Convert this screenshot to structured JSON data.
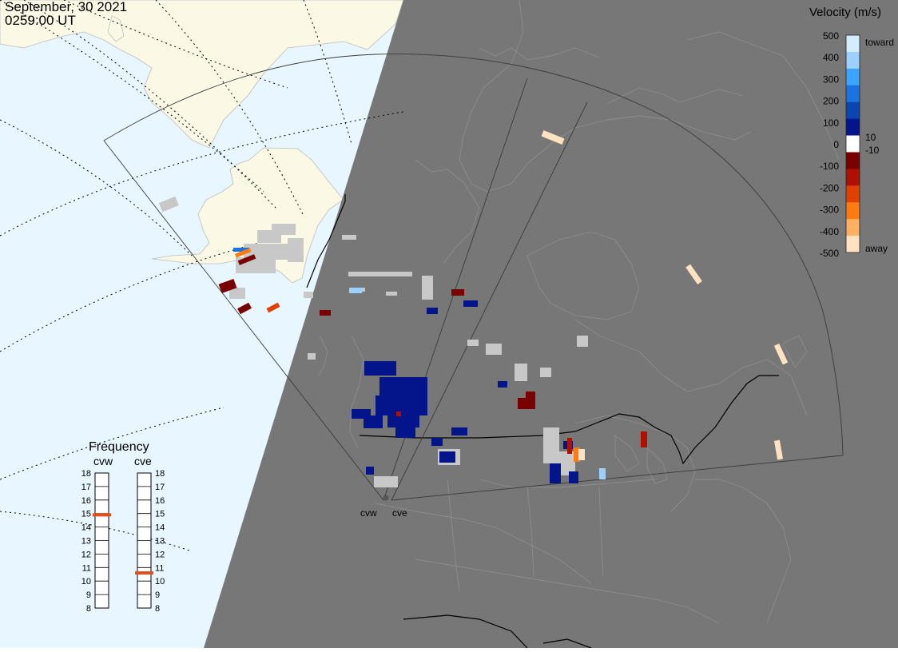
{
  "header": {
    "date": "September, 30 2021",
    "time": "0259:00 UT"
  },
  "colors": {
    "ocean": "#e7f6ff",
    "land_day": "#fbf9e6",
    "night": "#777777",
    "boundary": "#000000",
    "ground_scatter": "#c8c8c8"
  },
  "legend": {
    "title": "Velocity (m/s)",
    "ticks": [
      "500",
      "400",
      "300",
      "200",
      "100",
      "0",
      "-100",
      "-200",
      "-300",
      "-400",
      "-500"
    ],
    "side_labels": {
      "toward": "toward",
      "away": "away",
      "plus10": "10",
      "minus10": "-10"
    },
    "colors": [
      "#d5ecff",
      "#9bd0ff",
      "#3aa4ff",
      "#1a74e0",
      "#0a46b0",
      "#04148a",
      "#ffffff",
      "#7a0000",
      "#b01000",
      "#e04000",
      "#ff7a10",
      "#ffb060",
      "#ffe2c2"
    ]
  },
  "frequency": {
    "title": "Frequency",
    "ticks": [
      "18",
      "17",
      "16",
      "15",
      "14",
      "13",
      "12",
      "11",
      "10",
      "9",
      "8"
    ],
    "radars": [
      {
        "name": "cvw",
        "freq_mhz": 14.9
      },
      {
        "name": "cve",
        "freq_mhz": 10.6
      }
    ]
  },
  "radars": [
    "cvw",
    "cve"
  ]
}
